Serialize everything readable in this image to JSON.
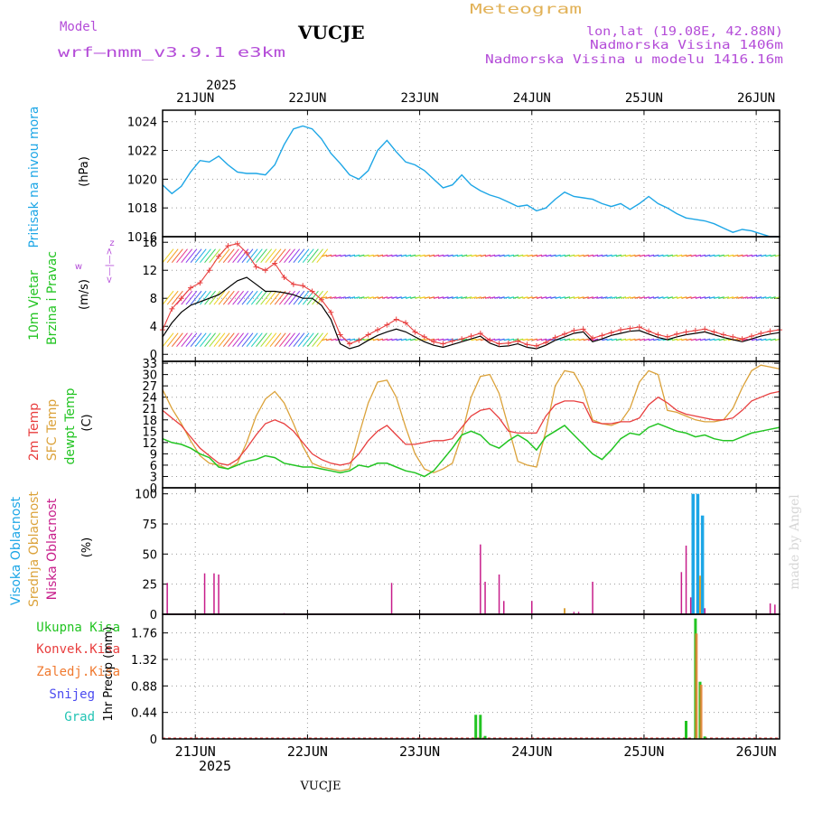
{
  "header": {
    "model_label": "Model",
    "model_name": "wrf—nmm_v3.9.1  e3km",
    "station": "VUCJE",
    "meteogram_label": "Meteogram",
    "lonlat": "lon,lat (19.08E, 42.88N)",
    "altitude": "Nadmorska Visina 1406m",
    "model_altitude": "Nadmorska Visina u modelu 1416.16m",
    "footer_station": "VUCJE",
    "watermark": "made by Angel"
  },
  "time_axis": {
    "year": "2025",
    "days": [
      "21JUN",
      "22JUN",
      "23JUN",
      "24JUN",
      "25JUN",
      "26JUN"
    ],
    "start_hour_before_first_day": 7,
    "hours_total": 132
  },
  "colors": {
    "pressure": "#1da6e6",
    "temp2m": "#e83e3e",
    "sfc_temp": "#dba23a",
    "dewpt": "#22c422",
    "wind_max": "#e83e3e",
    "wind_speed": "#000000",
    "cloud_high": "#1da6e6",
    "cloud_mid": "#dba23a",
    "cloud_low": "#c71d8a",
    "precip_total": "#22c422",
    "precip_conv": "#e83e3e",
    "precip_frozen": "#f07a30",
    "precip_snow": "#4a4af0",
    "precip_graupel": "#22c4b4",
    "label_magenta": "#b44cd8",
    "label_gold": "#e2b258"
  },
  "chart_data": [
    {
      "type": "line",
      "id": "pressure",
      "ylabel_left": "Pritisak na nivou mora",
      "ylabel_unit": "(hPa)",
      "yticks": [
        1016,
        1018,
        1020,
        1022,
        1024
      ],
      "ylim": [
        1016,
        1024.8
      ],
      "x_hours": [
        0,
        2,
        4,
        6,
        8,
        10,
        12,
        14,
        16,
        18,
        20,
        22,
        24,
        26,
        28,
        30,
        32,
        34,
        36,
        38,
        40,
        42,
        44,
        46,
        48,
        50,
        52,
        54,
        56,
        58,
        60,
        62,
        64,
        66,
        68,
        70,
        72,
        74,
        76,
        78,
        80,
        82,
        84,
        86,
        88,
        90,
        92,
        94,
        96,
        98,
        100,
        102,
        104,
        106,
        108,
        110,
        112,
        114,
        116,
        118,
        120,
        122,
        124,
        126,
        128,
        130,
        132
      ],
      "series": [
        {
          "name": "Pressure",
          "values": [
            1019.6,
            1019.0,
            1019.5,
            1020.5,
            1021.3,
            1021.2,
            1021.6,
            1021.0,
            1020.5,
            1020.4,
            1020.4,
            1020.3,
            1021.0,
            1022.4,
            1023.5,
            1023.7,
            1023.5,
            1022.8,
            1021.8,
            1021.1,
            1020.3,
            1020.0,
            1020.6,
            1022.0,
            1022.7,
            1021.9,
            1021.2,
            1021.0,
            1020.6,
            1020.0,
            1019.4,
            1019.6,
            1020.3,
            1019.6,
            1019.2,
            1018.9,
            1018.7,
            1018.4,
            1018.1,
            1018.2,
            1017.8,
            1018.0,
            1018.6,
            1019.1,
            1018.8,
            1018.7,
            1018.6,
            1018.3,
            1018.1,
            1018.3,
            1017.9,
            1018.3,
            1018.8,
            1018.3,
            1018.0,
            1017.6,
            1017.3,
            1017.2,
            1017.1,
            1016.9,
            1016.6,
            1016.3,
            1016.5,
            1016.4,
            1016.2,
            1016.0,
            1016.0
          ]
        }
      ]
    },
    {
      "type": "line",
      "id": "wind",
      "ylabel_left": [
        "10m Vjetar",
        "Brzina i Pravac"
      ],
      "ylabel_unit": "(m/s)",
      "compass": [
        "w",
        "<—|—>",
        "z"
      ],
      "yticks": [
        0,
        4,
        8,
        12,
        16
      ],
      "ylim": [
        -1,
        16.8
      ],
      "barb_levels": [
        2,
        8,
        14
      ],
      "series": [
        {
          "name": "Max gust",
          "values": [
            3.5,
            6.5,
            8.0,
            9.5,
            10.2,
            12.0,
            14.0,
            15.5,
            15.8,
            14.5,
            12.5,
            12.0,
            13.0,
            11.0,
            10.0,
            9.8,
            9.0,
            7.8,
            6.0,
            2.8,
            1.5,
            2.0,
            2.8,
            3.5,
            4.2,
            5.0,
            4.5,
            3.2,
            2.5,
            1.8,
            1.5,
            1.9,
            2.2,
            2.6,
            3.0,
            2.0,
            1.5,
            1.6,
            1.9,
            1.4,
            1.2,
            1.7,
            2.4,
            2.9,
            3.4,
            3.6,
            2.3,
            2.7,
            3.1,
            3.5,
            3.7,
            3.9,
            3.3,
            2.8,
            2.5,
            2.9,
            3.2,
            3.4,
            3.6,
            3.2,
            2.8,
            2.5,
            2.2,
            2.6,
            3.0,
            3.3,
            3.5
          ]
        },
        {
          "name": "Wind speed",
          "values": [
            2.5,
            4.5,
            6.0,
            7.0,
            7.5,
            8.0,
            8.5,
            9.5,
            10.5,
            11.0,
            10.0,
            9.0,
            9.0,
            8.8,
            8.5,
            8.0,
            8.0,
            7.0,
            5.0,
            1.5,
            0.8,
            1.2,
            2.0,
            2.7,
            3.2,
            3.6,
            3.2,
            2.5,
            1.8,
            1.3,
            1.0,
            1.4,
            1.8,
            2.2,
            2.6,
            1.6,
            1.1,
            1.2,
            1.5,
            1.0,
            0.8,
            1.3,
            2.0,
            2.5,
            3.0,
            3.2,
            1.8,
            2.2,
            2.7,
            3.0,
            3.3,
            3.4,
            2.9,
            2.4,
            2.1,
            2.5,
            2.8,
            3.0,
            3.2,
            2.8,
            2.4,
            2.1,
            1.8,
            2.2,
            2.6,
            2.9,
            3.1
          ]
        }
      ]
    },
    {
      "type": "line",
      "id": "temperature",
      "ylabel_left": [
        "2m Temp",
        "SFC Temp",
        "dewpt Temp"
      ],
      "ylabel_unit": "(C)",
      "yticks": [
        0,
        3,
        6,
        9,
        12,
        15,
        18,
        21,
        24,
        27,
        30,
        33
      ],
      "ylim": [
        0,
        33.5
      ],
      "series": [
        {
          "name": "2m Temp",
          "values": [
            20.5,
            18.5,
            16.5,
            13.5,
            10.5,
            8.5,
            6.5,
            6.0,
            7.5,
            10.5,
            14.0,
            17.0,
            18.0,
            17.0,
            15.0,
            12.0,
            9.0,
            7.5,
            6.5,
            6.0,
            6.5,
            9.0,
            12.5,
            15.0,
            16.5,
            14.0,
            11.5,
            11.5,
            12.0,
            12.5,
            12.5,
            13.0,
            16.0,
            19.0,
            20.5,
            21.0,
            18.5,
            15.0,
            14.5,
            14.5,
            14.5,
            19.0,
            22.0,
            23.0,
            23.0,
            22.5,
            17.5,
            17.0,
            17.0,
            17.5,
            17.5,
            18.5,
            22.0,
            24.0,
            22.5,
            20.5,
            19.5,
            19.0,
            18.5,
            18.0,
            18.0,
            18.5,
            20.5,
            23.0,
            24.0,
            25.0,
            25.5
          ]
        },
        {
          "name": "SFC Temp",
          "values": [
            26.0,
            21.0,
            17.0,
            12.5,
            8.5,
            6.5,
            6.0,
            5.0,
            6.5,
            12.0,
            19.0,
            23.5,
            25.5,
            22.5,
            17.0,
            11.0,
            6.5,
            5.5,
            5.0,
            4.5,
            5.0,
            14.0,
            22.5,
            28.0,
            28.5,
            24.0,
            16.0,
            9.0,
            5.0,
            4.0,
            5.0,
            6.5,
            14.0,
            24.0,
            29.5,
            30.0,
            25.0,
            16.0,
            7.0,
            6.0,
            5.5,
            15.0,
            27.0,
            31.0,
            30.5,
            26.0,
            18.0,
            17.0,
            16.5,
            17.5,
            21.0,
            28.0,
            31.0,
            30.0,
            20.5,
            20.0,
            19.0,
            18.0,
            17.5,
            17.5,
            18.0,
            21.0,
            26.5,
            31.0,
            32.5,
            32.0,
            31.5
          ]
        },
        {
          "name": "Dewpt",
          "values": [
            13.0,
            12.0,
            11.5,
            10.5,
            9.0,
            8.0,
            5.5,
            5.0,
            6.0,
            7.0,
            7.5,
            8.5,
            8.0,
            6.5,
            6.0,
            5.5,
            5.5,
            5.0,
            4.5,
            4.0,
            4.5,
            6.0,
            5.5,
            6.5,
            6.5,
            5.5,
            4.5,
            4.0,
            3.0,
            4.5,
            7.5,
            10.5,
            14.0,
            15.0,
            14.0,
            11.5,
            10.5,
            12.5,
            14.0,
            12.5,
            10.0,
            13.5,
            15.0,
            16.5,
            14.0,
            11.5,
            9.0,
            7.5,
            10.0,
            13.0,
            14.5,
            14.0,
            16.0,
            17.0,
            16.0,
            15.0,
            14.5,
            13.5,
            14.0,
            13.0,
            12.5,
            12.5,
            13.5,
            14.5,
            15.0,
            15.5,
            16.0
          ]
        }
      ]
    },
    {
      "type": "bar",
      "id": "clouds",
      "ylabel_left": [
        "Visoka Oblacnost",
        "Srednja Oblacnost",
        "Niska Oblacnost"
      ],
      "ylabel_unit": "(%)",
      "yticks": [
        0,
        25,
        50,
        75,
        100
      ],
      "ylim": [
        0,
        105
      ],
      "series": [
        {
          "name": "High",
          "bars": [
            {
              "h": 113.5,
              "v": 100
            },
            {
              "h": 114.5,
              "v": 100
            },
            {
              "h": 115.5,
              "v": 82
            }
          ]
        },
        {
          "name": "Mid",
          "bars": [
            {
              "h": 86.0,
              "v": 5
            },
            {
              "h": 115.0,
              "v": 32
            }
          ]
        },
        {
          "name": "Low",
          "bars": [
            {
              "h": 1.0,
              "v": 26
            },
            {
              "h": 9.0,
              "v": 34
            },
            {
              "h": 11.0,
              "v": 34
            },
            {
              "h": 12.0,
              "v": 33
            },
            {
              "h": 26.0,
              "v": 1
            },
            {
              "h": 49.0,
              "v": 26
            },
            {
              "h": 68.0,
              "v": 58
            },
            {
              "h": 69.0,
              "v": 27
            },
            {
              "h": 72.0,
              "v": 33
            },
            {
              "h": 73.0,
              "v": 11
            },
            {
              "h": 79.0,
              "v": 11
            },
            {
              "h": 88.0,
              "v": 2
            },
            {
              "h": 89.0,
              "v": 2
            },
            {
              "h": 92.0,
              "v": 27
            },
            {
              "h": 111.0,
              "v": 35
            },
            {
              "h": 112.0,
              "v": 57
            },
            {
              "h": 113.0,
              "v": 14
            },
            {
              "h": 116.0,
              "v": 5
            },
            {
              "h": 130.0,
              "v": 9
            },
            {
              "h": 131.0,
              "v": 8
            }
          ]
        }
      ]
    },
    {
      "type": "bar",
      "id": "precip",
      "legend": [
        "Ukupna  Kisa",
        "Konvek.Kisa",
        "Zaledj.Kisa",
        "Snijeg",
        "Grad"
      ],
      "ylabel_unit": "1hr Precip  (mm)",
      "yticks": [
        0,
        0.44,
        0.88,
        1.32,
        1.76
      ],
      "ylim": [
        0,
        2.07
      ],
      "series": [
        {
          "name": "Total",
          "bars": [
            {
              "h": 67.0,
              "v": 0.4
            },
            {
              "h": 68.0,
              "v": 0.4
            },
            {
              "h": 69.0,
              "v": 0.05
            },
            {
              "h": 112.0,
              "v": 0.3
            },
            {
              "h": 114.0,
              "v": 2.0
            },
            {
              "h": 115.0,
              "v": 0.95
            },
            {
              "h": 116.0,
              "v": 0.04
            }
          ]
        },
        {
          "name": "Frozen",
          "bars": [
            {
              "h": 114.2,
              "v": 1.75
            },
            {
              "h": 115.2,
              "v": 0.9
            }
          ]
        }
      ]
    }
  ]
}
